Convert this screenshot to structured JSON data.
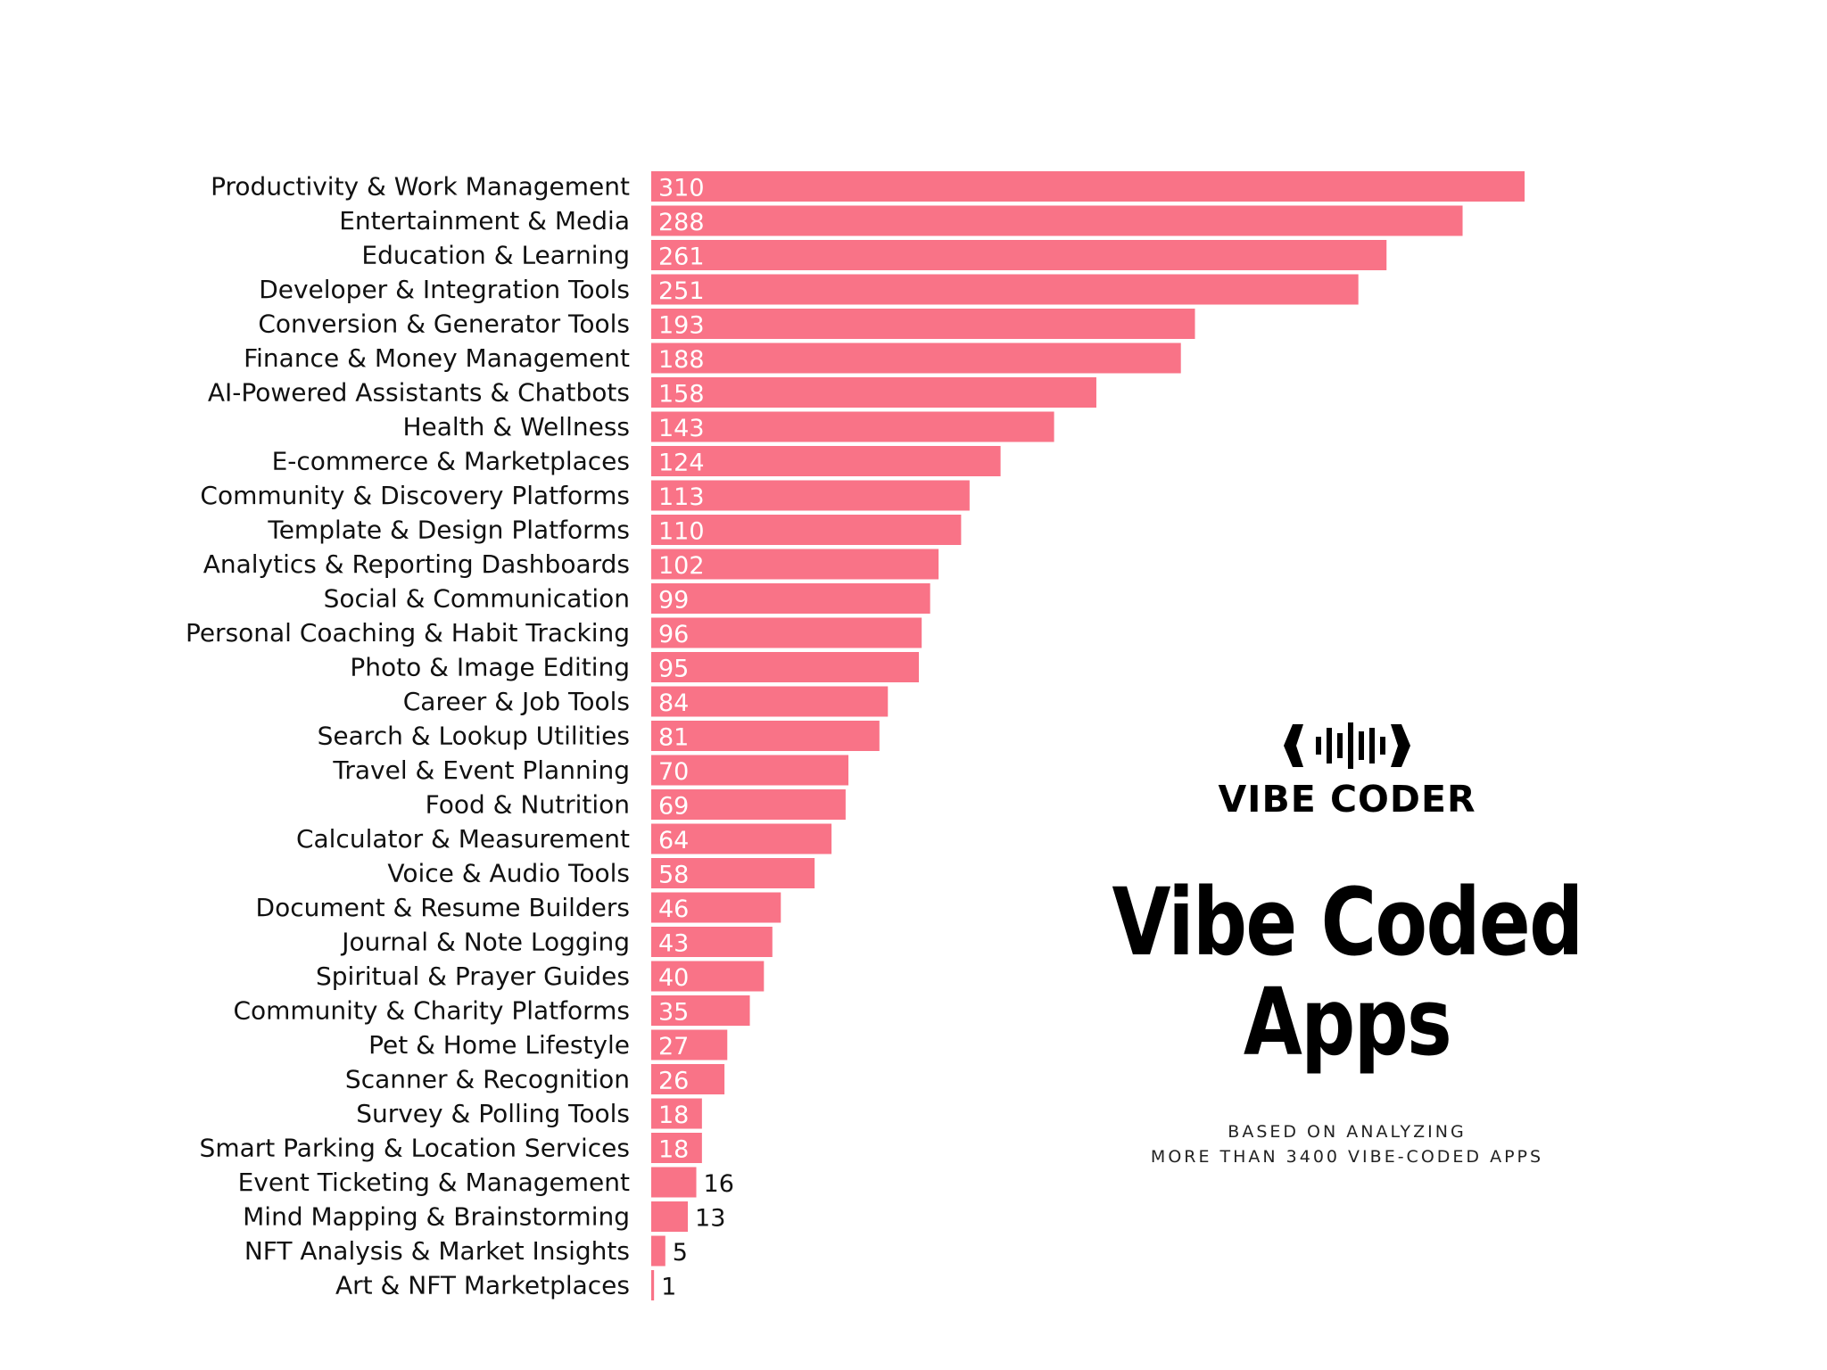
{
  "chart_data": {
    "type": "bar",
    "orientation": "horizontal",
    "bar_color": "#F97387",
    "grid": false,
    "categories": [
      "Productivity & Work Management",
      "Entertainment & Media",
      "Education & Learning",
      "Developer & Integration Tools",
      "Conversion & Generator Tools",
      "Finance & Money Management",
      "AI-Powered Assistants & Chatbots",
      "Health & Wellness",
      "E-commerce & Marketplaces",
      "Community & Discovery Platforms",
      "Template & Design Platforms",
      "Analytics & Reporting Dashboards",
      "Social & Communication",
      "Personal Coaching & Habit Tracking",
      "Photo & Image Editing",
      "Career & Job Tools",
      "Search & Lookup Utilities",
      "Travel & Event Planning",
      "Food & Nutrition",
      "Calculator & Measurement",
      "Voice & Audio Tools",
      "Document & Resume Builders",
      "Journal & Note Logging",
      "Spiritual & Prayer Guides",
      "Community & Charity Platforms",
      "Pet & Home Lifestyle",
      "Scanner & Recognition",
      "Survey & Polling Tools",
      "Smart Parking & Location Services",
      "Event Ticketing & Management",
      "Mind Mapping & Brainstorming",
      "NFT Analysis & Market Insights",
      "Art & NFT Marketplaces"
    ],
    "values": [
      310,
      288,
      261,
      251,
      193,
      188,
      158,
      143,
      124,
      113,
      110,
      102,
      99,
      96,
      95,
      84,
      81,
      70,
      69,
      64,
      58,
      46,
      43,
      40,
      35,
      27,
      26,
      18,
      18,
      16,
      13,
      5,
      1
    ]
  },
  "brand": {
    "name": "VIBE CODER",
    "logo_icon": "soundwave-brackets-icon"
  },
  "title": {
    "line1": "Vibe Coded",
    "line2": "Apps"
  },
  "subtitle": {
    "line1": "BASED ON ANALYZING",
    "line2": "MORE THAN 3400 VIBE-CODED APPS"
  }
}
